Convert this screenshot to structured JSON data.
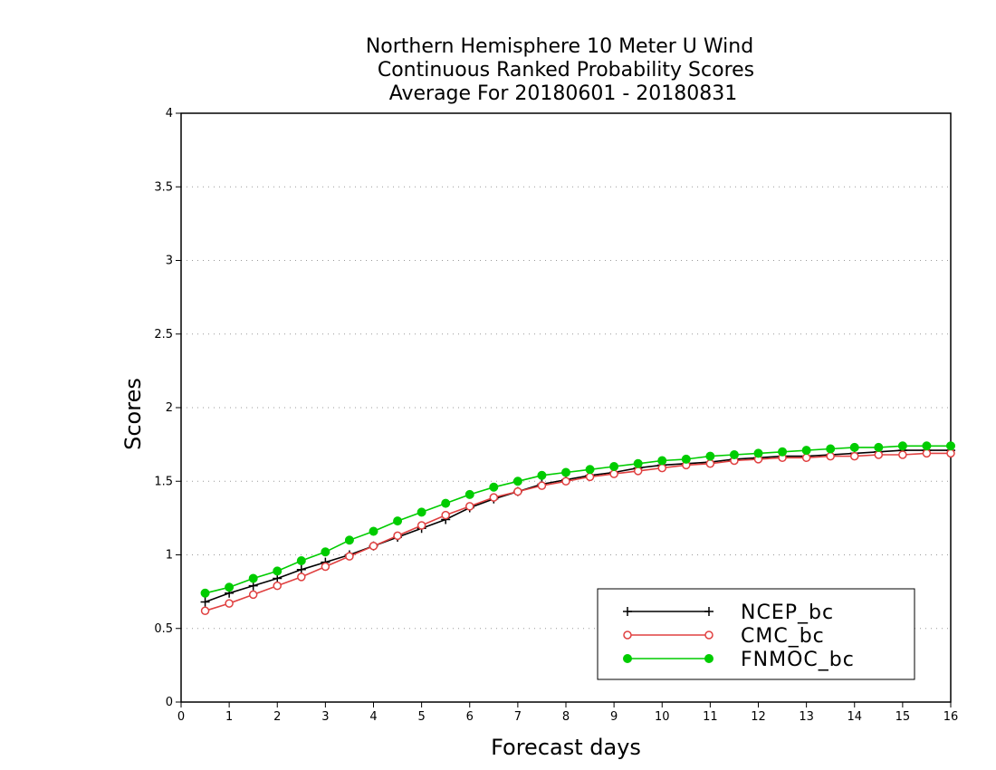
{
  "chart_data": {
    "type": "line",
    "title_lines": [
      "Northern Hemisphere 10 Meter U Wind",
      "Continuous Ranked Probability Scores",
      "Average For 20180601 - 20180831"
    ],
    "xlabel": "Forecast days",
    "ylabel": "Scores",
    "xlim": [
      0,
      16
    ],
    "ylim": [
      0,
      4
    ],
    "x_ticks": [
      "0",
      "1",
      "2",
      "3",
      "4",
      "5",
      "6",
      "7",
      "8",
      "9",
      "10",
      "11",
      "12",
      "13",
      "14",
      "15",
      "16"
    ],
    "y_ticks": [
      "0",
      "0.5",
      "1",
      "1.5",
      "2",
      "2.5",
      "3",
      "3.5",
      "4"
    ],
    "grid": "horizontal dotted",
    "legend_position": "bottom-right",
    "x": [
      0.5,
      1,
      1.5,
      2,
      2.5,
      3,
      3.5,
      4,
      4.5,
      5,
      5.5,
      6,
      6.5,
      7,
      7.5,
      8,
      8.5,
      9,
      9.5,
      10,
      10.5,
      11,
      11.5,
      12,
      12.5,
      13,
      13.5,
      14,
      14.5,
      15,
      15.5,
      16
    ],
    "series": [
      {
        "name": "NCEP_bc",
        "color": "#000000",
        "marker": "plus",
        "values": [
          0.68,
          0.74,
          0.79,
          0.84,
          0.9,
          0.95,
          1.0,
          1.06,
          1.12,
          1.18,
          1.24,
          1.32,
          1.38,
          1.43,
          1.48,
          1.51,
          1.54,
          1.56,
          1.59,
          1.61,
          1.62,
          1.63,
          1.65,
          1.66,
          1.67,
          1.67,
          1.68,
          1.69,
          1.7,
          1.71,
          1.71,
          1.71
        ]
      },
      {
        "name": "CMC_bc",
        "color": "#e04040",
        "marker": "open-circle",
        "values": [
          0.62,
          0.67,
          0.73,
          0.79,
          0.85,
          0.92,
          0.99,
          1.06,
          1.13,
          1.2,
          1.27,
          1.33,
          1.39,
          1.43,
          1.47,
          1.5,
          1.53,
          1.55,
          1.57,
          1.59,
          1.61,
          1.62,
          1.64,
          1.65,
          1.66,
          1.66,
          1.67,
          1.67,
          1.68,
          1.68,
          1.69,
          1.69
        ]
      },
      {
        "name": "FNMOC_bc",
        "color": "#00cc00",
        "marker": "filled-circle",
        "values": [
          0.74,
          0.78,
          0.84,
          0.89,
          0.96,
          1.02,
          1.1,
          1.16,
          1.23,
          1.29,
          1.35,
          1.41,
          1.46,
          1.5,
          1.54,
          1.56,
          1.58,
          1.6,
          1.62,
          1.64,
          1.65,
          1.67,
          1.68,
          1.69,
          1.7,
          1.71,
          1.72,
          1.73,
          1.73,
          1.74,
          1.74,
          1.74
        ]
      }
    ]
  }
}
